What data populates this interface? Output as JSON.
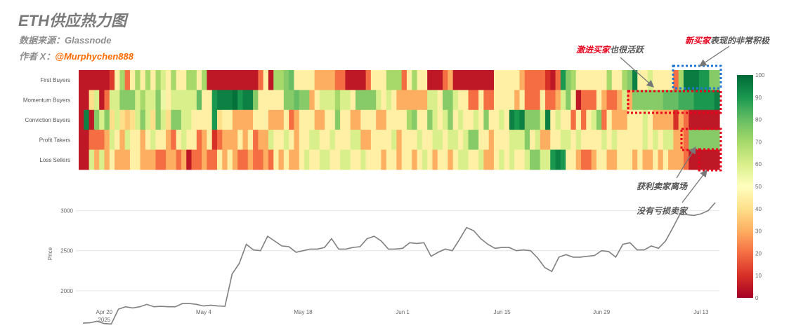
{
  "header": {
    "title": "ETH供应热力图",
    "source": "数据来源：Glassnode",
    "author_prefix": "作者 X：",
    "author_handle": "@Murphychen888"
  },
  "annotations": {
    "aggressive_red": "激进买家",
    "aggressive_rest": "也很活跃",
    "new_red": "新买家",
    "new_rest": "表现的非常积极",
    "profit_takers": "获利卖家离场",
    "no_loss_sellers": "没有亏损卖家"
  },
  "colors": {
    "low": "#a50026",
    "mid": "#ffffbf",
    "high": "#006837",
    "line": "#7f7f7f",
    "box_blue": "#1f77d4",
    "box_red": "#e8001c"
  },
  "chart_data": [
    {
      "type": "heatmap",
      "title": "ETH供应热力图",
      "rows": [
        "First Buyers",
        "Momentum Buyers",
        "Conviction Buyers",
        "Profit Takers",
        "Loss Sellers"
      ],
      "colorbar": {
        "min": 0,
        "max": 100,
        "ticks": [
          0,
          10,
          20,
          30,
          40,
          50,
          60,
          70,
          80,
          90,
          100
        ]
      },
      "values": [
        [
          5,
          5,
          5,
          5,
          5,
          5,
          12,
          45,
          70,
          20,
          45,
          70,
          45,
          70,
          45,
          70,
          60,
          45,
          70,
          45,
          45,
          70,
          70,
          45,
          70,
          5,
          5,
          5,
          5,
          5,
          5,
          5,
          5,
          5,
          5,
          20,
          45,
          5,
          70,
          70,
          75,
          80,
          45,
          45,
          45,
          45,
          30,
          30,
          30,
          30,
          20,
          20,
          5,
          5,
          5,
          5,
          20,
          45,
          45,
          45,
          70,
          70,
          70,
          20,
          45,
          70,
          45,
          45,
          5,
          5,
          5,
          20,
          30,
          5,
          5,
          5,
          5,
          5,
          5,
          5,
          5,
          45,
          45,
          45,
          45,
          45,
          30,
          20,
          20,
          20,
          20,
          10,
          5,
          20,
          90,
          75,
          70,
          45,
          45,
          45,
          45,
          45,
          45,
          70,
          45,
          45,
          70,
          75,
          95,
          45,
          45,
          60,
          45,
          45,
          45,
          45,
          20,
          70,
          96,
          96,
          96,
          90,
          90,
          75,
          75
        ],
        [
          5,
          5,
          40,
          60,
          5,
          20,
          60,
          60,
          75,
          75,
          75,
          60,
          70,
          60,
          60,
          75,
          55,
          45,
          60,
          60,
          60,
          60,
          60,
          80,
          45,
          45,
          90,
          95,
          95,
          95,
          98,
          90,
          95,
          95,
          75,
          45,
          45,
          45,
          45,
          45,
          75,
          75,
          80,
          75,
          75,
          30,
          45,
          60,
          60,
          60,
          70,
          60,
          60,
          45,
          75,
          75,
          75,
          75,
          60,
          45,
          60,
          45,
          30,
          30,
          30,
          30,
          30,
          30,
          60,
          60,
          45,
          75,
          75,
          60,
          45,
          45,
          20,
          20,
          45,
          20,
          20,
          45,
          45,
          45,
          45,
          30,
          45,
          20,
          20,
          20,
          45,
          20,
          20,
          30,
          60,
          75,
          45,
          5,
          20,
          20,
          20,
          45,
          30,
          20,
          20,
          30,
          60,
          30,
          75,
          75,
          75,
          75,
          75,
          75,
          80,
          80,
          80,
          85,
          85,
          85,
          90,
          90,
          90,
          90,
          95
        ],
        [
          5,
          95,
          5,
          75,
          60,
          75,
          40,
          60,
          40,
          35,
          40,
          60,
          75,
          60,
          40,
          75,
          60,
          40,
          75,
          75,
          60,
          60,
          45,
          45,
          45,
          45,
          90,
          40,
          45,
          45,
          30,
          30,
          30,
          30,
          45,
          45,
          45,
          30,
          30,
          30,
          45,
          20,
          30,
          45,
          45,
          45,
          30,
          30,
          45,
          45,
          75,
          45,
          45,
          30,
          30,
          45,
          45,
          45,
          30,
          30,
          45,
          45,
          45,
          45,
          70,
          75,
          45,
          45,
          75,
          60,
          45,
          60,
          75,
          45,
          60,
          45,
          45,
          60,
          45,
          75,
          45,
          45,
          60,
          45,
          95,
          90,
          95,
          75,
          75,
          75,
          60,
          95,
          45,
          60,
          45,
          45,
          20,
          45,
          20,
          45,
          60,
          75,
          20,
          45,
          30,
          30,
          30,
          45,
          45,
          45,
          60,
          45,
          30,
          30,
          30,
          30,
          10,
          30,
          20,
          5,
          5,
          5,
          5,
          5,
          5
        ],
        [
          5,
          5,
          20,
          20,
          20,
          30,
          60,
          45,
          30,
          60,
          45,
          45,
          30,
          45,
          60,
          45,
          45,
          30,
          20,
          45,
          60,
          45,
          45,
          20,
          30,
          45,
          10,
          20,
          30,
          30,
          30,
          45,
          30,
          45,
          20,
          30,
          30,
          60,
          45,
          45,
          60,
          45,
          30,
          45,
          45,
          60,
          60,
          45,
          45,
          60,
          45,
          45,
          45,
          60,
          60,
          30,
          30,
          45,
          45,
          45,
          45,
          60,
          30,
          45,
          45,
          45,
          60,
          45,
          45,
          60,
          60,
          45,
          60,
          60,
          45,
          60,
          75,
          75,
          45,
          45,
          30,
          45,
          45,
          45,
          60,
          60,
          60,
          75,
          45,
          60,
          30,
          30,
          45,
          45,
          60,
          60,
          45,
          60,
          45,
          45,
          45,
          45,
          60,
          45,
          60,
          45,
          45,
          45,
          45,
          45,
          60,
          45,
          60,
          45,
          60,
          60,
          30,
          30,
          20,
          75,
          75,
          75,
          75,
          75,
          75
        ],
        [
          5,
          5,
          60,
          30,
          60,
          30,
          45,
          30,
          30,
          30,
          45,
          45,
          30,
          30,
          30,
          20,
          20,
          30,
          30,
          20,
          30,
          5,
          20,
          20,
          30,
          20,
          20,
          45,
          30,
          45,
          30,
          20,
          20,
          30,
          20,
          20,
          30,
          20,
          45,
          30,
          45,
          30,
          30,
          45,
          60,
          45,
          45,
          60,
          60,
          45,
          45,
          60,
          60,
          45,
          45,
          60,
          45,
          45,
          45,
          30,
          45,
          45,
          30,
          45,
          45,
          30,
          45,
          60,
          45,
          30,
          45,
          45,
          30,
          45,
          60,
          60,
          45,
          45,
          60,
          30,
          30,
          45,
          60,
          45,
          60,
          45,
          45,
          60,
          75,
          75,
          60,
          60,
          90,
          95,
          90,
          45,
          45,
          30,
          20,
          20,
          30,
          45,
          45,
          30,
          30,
          45,
          45,
          45,
          30,
          45,
          30,
          30,
          45,
          30,
          45,
          30,
          30,
          30,
          20,
          5,
          5,
          5,
          5,
          5,
          5
        ]
      ]
    },
    {
      "type": "line",
      "ylabel": "Price",
      "yticks": [
        2000,
        2500,
        3000
      ],
      "ylim": [
        1780,
        3180
      ],
      "x_start": "2025-04-17",
      "x_end": "2025-07-15",
      "xticks": [
        {
          "date": "2025-04-20",
          "label": "Apr 20",
          "sublabel": "2025"
        },
        {
          "date": "2025-05-04",
          "label": "May 4"
        },
        {
          "date": "2025-05-18",
          "label": "May 18"
        },
        {
          "date": "2025-06-01",
          "label": "Jun 1"
        },
        {
          "date": "2025-06-15",
          "label": "Jun 15"
        },
        {
          "date": "2025-06-29",
          "label": "Jun 29"
        },
        {
          "date": "2025-07-13",
          "label": "Jul 13"
        }
      ],
      "values": [
        1595,
        1600,
        1620,
        1590,
        1585,
        1770,
        1800,
        1785,
        1800,
        1830,
        1800,
        1805,
        1800,
        1800,
        1840,
        1840,
        1830,
        1810,
        1820,
        1810,
        1805,
        2210,
        2340,
        2580,
        2510,
        2500,
        2680,
        2620,
        2560,
        2550,
        2480,
        2500,
        2520,
        2520,
        2540,
        2650,
        2520,
        2520,
        2540,
        2550,
        2650,
        2680,
        2620,
        2520,
        2520,
        2530,
        2600,
        2590,
        2600,
        2430,
        2480,
        2520,
        2500,
        2640,
        2790,
        2750,
        2650,
        2580,
        2530,
        2540,
        2540,
        2500,
        2510,
        2500,
        2410,
        2290,
        2240,
        2420,
        2450,
        2420,
        2420,
        2430,
        2440,
        2500,
        2490,
        2420,
        2580,
        2600,
        2510,
        2510,
        2560,
        2530,
        2620,
        2780,
        2950,
        2950,
        2940,
        2960,
        3000,
        3100
      ]
    }
  ]
}
